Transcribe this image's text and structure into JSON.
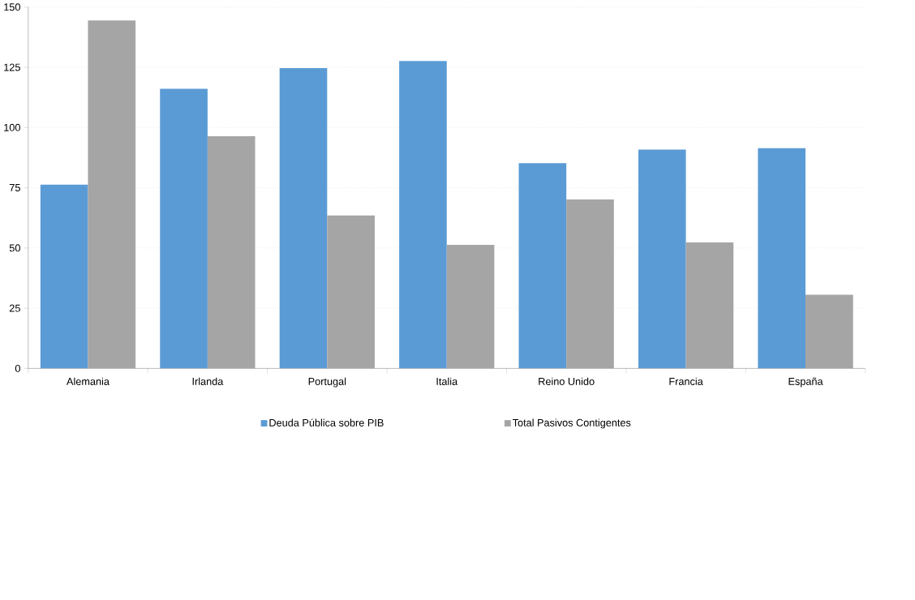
{
  "chart_data": {
    "type": "bar",
    "categories": [
      "Alemania",
      "Irlanda",
      "Portugal",
      "Italia",
      "Reino Unido",
      "Francia",
      "España"
    ],
    "series": [
      {
        "name": "Deuda Pública sobre PIB",
        "color": "#5b9bd5",
        "values": [
          76.3,
          116.1,
          124.7,
          127.6,
          85.2,
          90.8,
          91.4
        ]
      },
      {
        "name": "Total Pasivos Contigentes",
        "color": "#a5a5a5",
        "values": [
          144.4,
          96.4,
          63.5,
          51.3,
          70.1,
          52.3,
          30.6
        ]
      }
    ],
    "ylim": [
      0,
      150
    ],
    "yticks": [
      0,
      25,
      50,
      75,
      100,
      125,
      150
    ],
    "grid": "y",
    "legend": "bottom"
  }
}
